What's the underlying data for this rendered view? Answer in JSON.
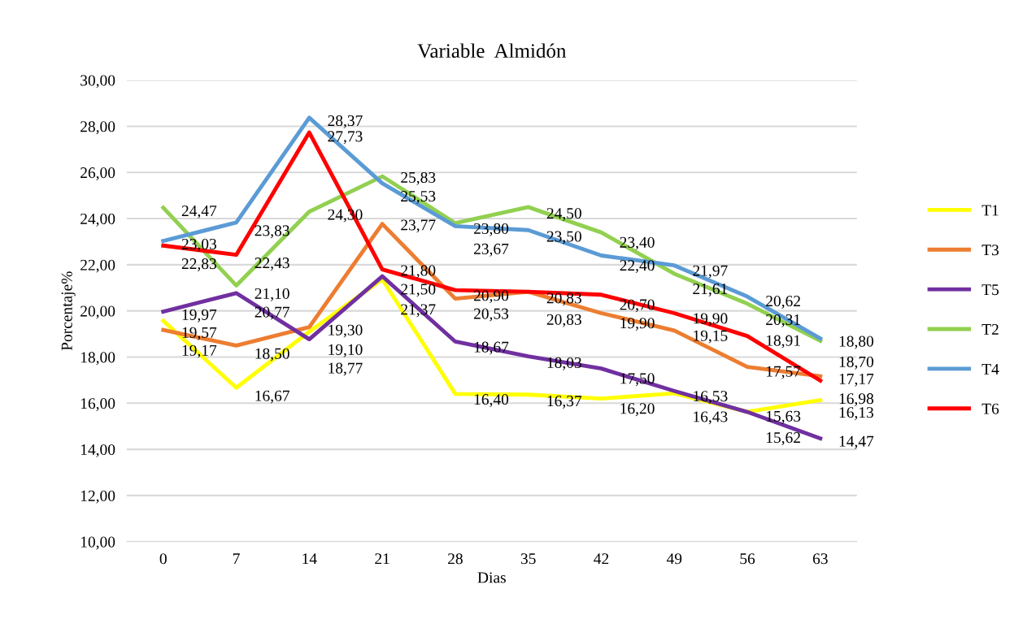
{
  "chart_data": {
    "type": "line",
    "title": "Variable  Almidón",
    "xlabel": "Dias",
    "ylabel": "Porcentaje%",
    "categories": [
      "0",
      "7",
      "14",
      "21",
      "28",
      "35",
      "42",
      "49",
      "56",
      "63"
    ],
    "series": [
      {
        "name": "T1",
        "color": "#ffff00",
        "values": [
          19.57,
          16.67,
          19.1,
          21.37,
          16.4,
          16.37,
          16.2,
          16.43,
          15.63,
          16.13
        ],
        "value_labels": [
          "19,57",
          "16,67",
          "19,10",
          "21,37",
          "16,40",
          "16,37",
          "16,20",
          "16,43",
          "15,63",
          "16,13"
        ]
      },
      {
        "name": "T3",
        "color": "#ed7d31",
        "values": [
          19.17,
          18.5,
          19.3,
          23.77,
          20.53,
          20.83,
          19.9,
          19.15,
          17.57,
          17.17
        ],
        "value_labels": [
          "19,17",
          "18,50",
          "19,30",
          "23,77",
          "20,53",
          "20,83",
          "19,90",
          "19,15",
          "17,57",
          "17,17"
        ]
      },
      {
        "name": "T5",
        "color": "#7030a0",
        "values": [
          19.97,
          20.77,
          18.77,
          21.5,
          18.67,
          18.03,
          17.5,
          16.53,
          15.62,
          14.47
        ],
        "value_labels": [
          "19,97",
          "20,77",
          "18,77",
          "21,50",
          "18,67",
          "18,03",
          "17,50",
          "16,53",
          "15,62",
          "14,47"
        ]
      },
      {
        "name": "T2",
        "color": "#92d050",
        "values": [
          24.47,
          21.1,
          24.3,
          25.83,
          23.8,
          24.5,
          23.4,
          21.61,
          20.31,
          18.7
        ],
        "value_labels": [
          "24,47",
          "21,10",
          "24,30",
          "25,83",
          "23,80",
          "24,50",
          "23,40",
          "21,61",
          "20,31",
          "18,70"
        ]
      },
      {
        "name": "T4",
        "color": "#5b9bd5",
        "values": [
          23.03,
          23.83,
          28.37,
          25.53,
          23.67,
          23.5,
          22.4,
          21.97,
          20.62,
          18.8
        ],
        "value_labels": [
          "23,03",
          "23,83",
          "28,37",
          "25,53",
          "23,67",
          "23,50",
          "22,40",
          "21,97",
          "20,62",
          "18,80"
        ]
      },
      {
        "name": "T6",
        "color": "#ff0000",
        "values": [
          22.83,
          22.43,
          27.73,
          21.8,
          20.9,
          20.83,
          20.7,
          19.9,
          18.91,
          16.98
        ],
        "value_labels": [
          "22,83",
          "22,43",
          "27,73",
          "21,80",
          "20,90",
          "20,83",
          "20,70",
          "19,90",
          "18,91",
          "16,98"
        ]
      }
    ],
    "ylim": [
      10,
      30
    ],
    "yticks": [
      {
        "value": 10,
        "label": "10,00"
      },
      {
        "value": 12,
        "label": "12,00"
      },
      {
        "value": 14,
        "label": "14,00"
      },
      {
        "value": 16,
        "label": "16,00"
      },
      {
        "value": 18,
        "label": "18,00"
      },
      {
        "value": 20,
        "label": "20,00"
      },
      {
        "value": 22,
        "label": "22,00"
      },
      {
        "value": 24,
        "label": "24,00"
      },
      {
        "value": 26,
        "label": "26,00"
      },
      {
        "value": 28,
        "label": "28,00"
      },
      {
        "value": 30,
        "label": "30,00"
      }
    ],
    "grid": "y",
    "legend": "right",
    "marker": "none",
    "line_style": "solid"
  }
}
